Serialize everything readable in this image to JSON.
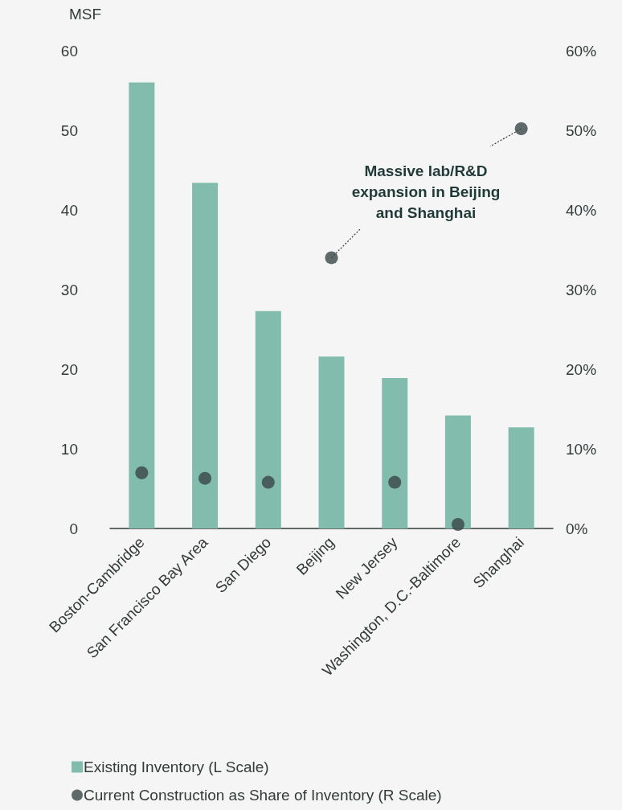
{
  "chart_data": {
    "type": "bar",
    "categories": [
      "Boston-Cambridge",
      "San Francisco Bay Area",
      "San Diego",
      "Beijing",
      "New Jersey",
      "Washington, D.C.-Baltimore",
      "Shanghai"
    ],
    "ylabel": "MSF",
    "series": [
      {
        "name": "Existing Inventory (L Scale)",
        "color": "#82bcad",
        "values": [
          56,
          43.4,
          27.3,
          21.6,
          18.9,
          14.2,
          12.7
        ]
      },
      {
        "name": "Current Construction as Share of Inventory (R Scale)",
        "type": "scatter",
        "axis": "y2",
        "color": "#3a4647",
        "values": [
          7,
          6.3,
          5.8,
          34,
          5.8,
          0.5,
          50.2
        ]
      }
    ],
    "ylim": [
      0,
      60
    ],
    "yticks": [
      0,
      10,
      20,
      30,
      40,
      50,
      60
    ],
    "y2lim": [
      0,
      60
    ],
    "y2ticks": [
      {
        "value": 0,
        "label": "0%"
      },
      {
        "value": 10,
        "label": "10%"
      },
      {
        "value": 20,
        "label": "20%"
      },
      {
        "value": 30,
        "label": "30%"
      },
      {
        "value": 40,
        "label": "40%"
      },
      {
        "value": 50,
        "label": "50%"
      },
      {
        "value": 60,
        "label": "60%"
      }
    ],
    "annotations": [
      {
        "text": "Massive lab/R&D expansion in Beijing and Shanghai",
        "x": "Beijing",
        "y": 34
      }
    ],
    "grid": false,
    "legend": "bottom left",
    "marker": "circle"
  }
}
